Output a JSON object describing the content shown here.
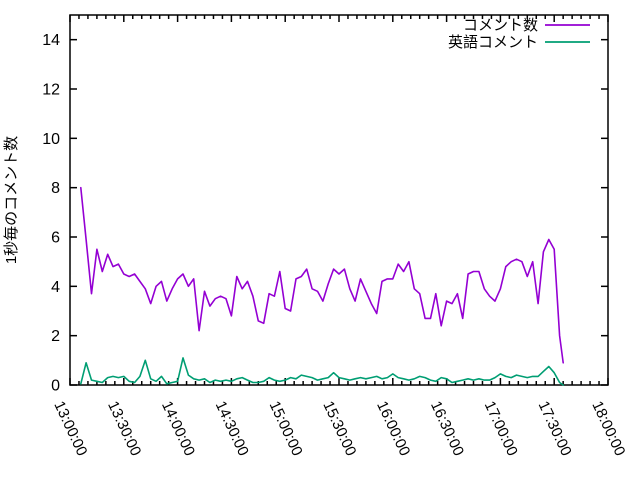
{
  "chart_data": {
    "type": "line",
    "ylabel": "1秒毎のコメント数",
    "grid": false,
    "legend_position": "top-right-inside",
    "x_axis": {
      "tick_labels": [
        "13:00:00",
        "13:30:00",
        "14:00:00",
        "14:30:00",
        "15:00:00",
        "15:30:00",
        "16:00:00",
        "16:30:00",
        "17:00:00",
        "17:30:00",
        "18:00:00"
      ],
      "range_minutes": [
        0,
        300
      ],
      "major_step_minutes": 30,
      "minor_step_minutes": 5
    },
    "y_axis": {
      "ticks": [
        0,
        2,
        4,
        6,
        8,
        10,
        12,
        14
      ],
      "range": [
        0,
        15
      ]
    },
    "x_minutes": [
      6,
      9,
      12,
      15,
      18,
      21,
      24,
      27,
      30,
      33,
      36,
      39,
      42,
      45,
      48,
      51,
      54,
      57,
      60,
      63,
      66,
      69,
      72,
      75,
      78,
      81,
      84,
      87,
      90,
      93,
      96,
      99,
      102,
      105,
      108,
      111,
      114,
      117,
      120,
      123,
      126,
      129,
      132,
      135,
      138,
      141,
      144,
      147,
      150,
      153,
      156,
      159,
      162,
      165,
      168,
      171,
      174,
      177,
      180,
      183,
      186,
      189,
      192,
      195,
      198,
      201,
      204,
      207,
      210,
      213,
      216,
      219,
      222,
      225,
      228,
      231,
      234,
      237,
      240,
      243,
      246,
      249,
      252,
      255,
      258,
      261,
      264,
      267,
      270,
      273,
      275
    ],
    "series": [
      {
        "name": "コメント数",
        "color": "#9400D3",
        "values": [
          8.0,
          5.9,
          3.7,
          5.5,
          4.6,
          5.3,
          4.8,
          4.9,
          4.5,
          4.4,
          4.5,
          4.2,
          3.9,
          3.3,
          4.0,
          4.2,
          3.4,
          3.9,
          4.3,
          4.5,
          4.0,
          4.3,
          2.2,
          3.8,
          3.2,
          3.5,
          3.6,
          3.5,
          2.8,
          4.4,
          3.9,
          4.2,
          3.6,
          2.6,
          2.5,
          3.7,
          3.6,
          4.6,
          3.1,
          3.0,
          4.3,
          4.4,
          4.7,
          3.9,
          3.8,
          3.4,
          4.1,
          4.7,
          4.5,
          4.7,
          3.9,
          3.4,
          4.3,
          3.8,
          3.3,
          2.9,
          4.2,
          4.3,
          4.3,
          4.9,
          4.6,
          5.0,
          3.9,
          3.7,
          2.7,
          2.7,
          3.7,
          2.4,
          3.4,
          3.3,
          3.7,
          2.7,
          4.5,
          4.6,
          4.6,
          3.9,
          3.6,
          3.4,
          3.9,
          4.8,
          5.0,
          5.1,
          5.0,
          4.4,
          5.0,
          3.3,
          5.4,
          5.9,
          5.5,
          2.0,
          0.9
        ]
      },
      {
        "name": "英語コメント",
        "color": "#009E73",
        "values": [
          0.05,
          0.9,
          0.2,
          0.15,
          0.1,
          0.3,
          0.35,
          0.3,
          0.35,
          0.15,
          0.1,
          0.35,
          1.0,
          0.25,
          0.15,
          0.35,
          0.05,
          0.1,
          0.15,
          1.1,
          0.4,
          0.25,
          0.2,
          0.25,
          0.1,
          0.2,
          0.15,
          0.2,
          0.15,
          0.25,
          0.3,
          0.2,
          0.1,
          0.1,
          0.15,
          0.3,
          0.2,
          0.15,
          0.2,
          0.3,
          0.25,
          0.4,
          0.35,
          0.3,
          0.2,
          0.25,
          0.3,
          0.5,
          0.3,
          0.25,
          0.2,
          0.25,
          0.3,
          0.25,
          0.3,
          0.35,
          0.25,
          0.3,
          0.45,
          0.3,
          0.25,
          0.2,
          0.25,
          0.35,
          0.3,
          0.2,
          0.15,
          0.3,
          0.25,
          0.1,
          0.15,
          0.2,
          0.25,
          0.2,
          0.25,
          0.2,
          0.2,
          0.3,
          0.45,
          0.35,
          0.3,
          0.4,
          0.35,
          0.3,
          0.35,
          0.35,
          0.55,
          0.75,
          0.5,
          0.1,
          0.0
        ]
      }
    ]
  }
}
